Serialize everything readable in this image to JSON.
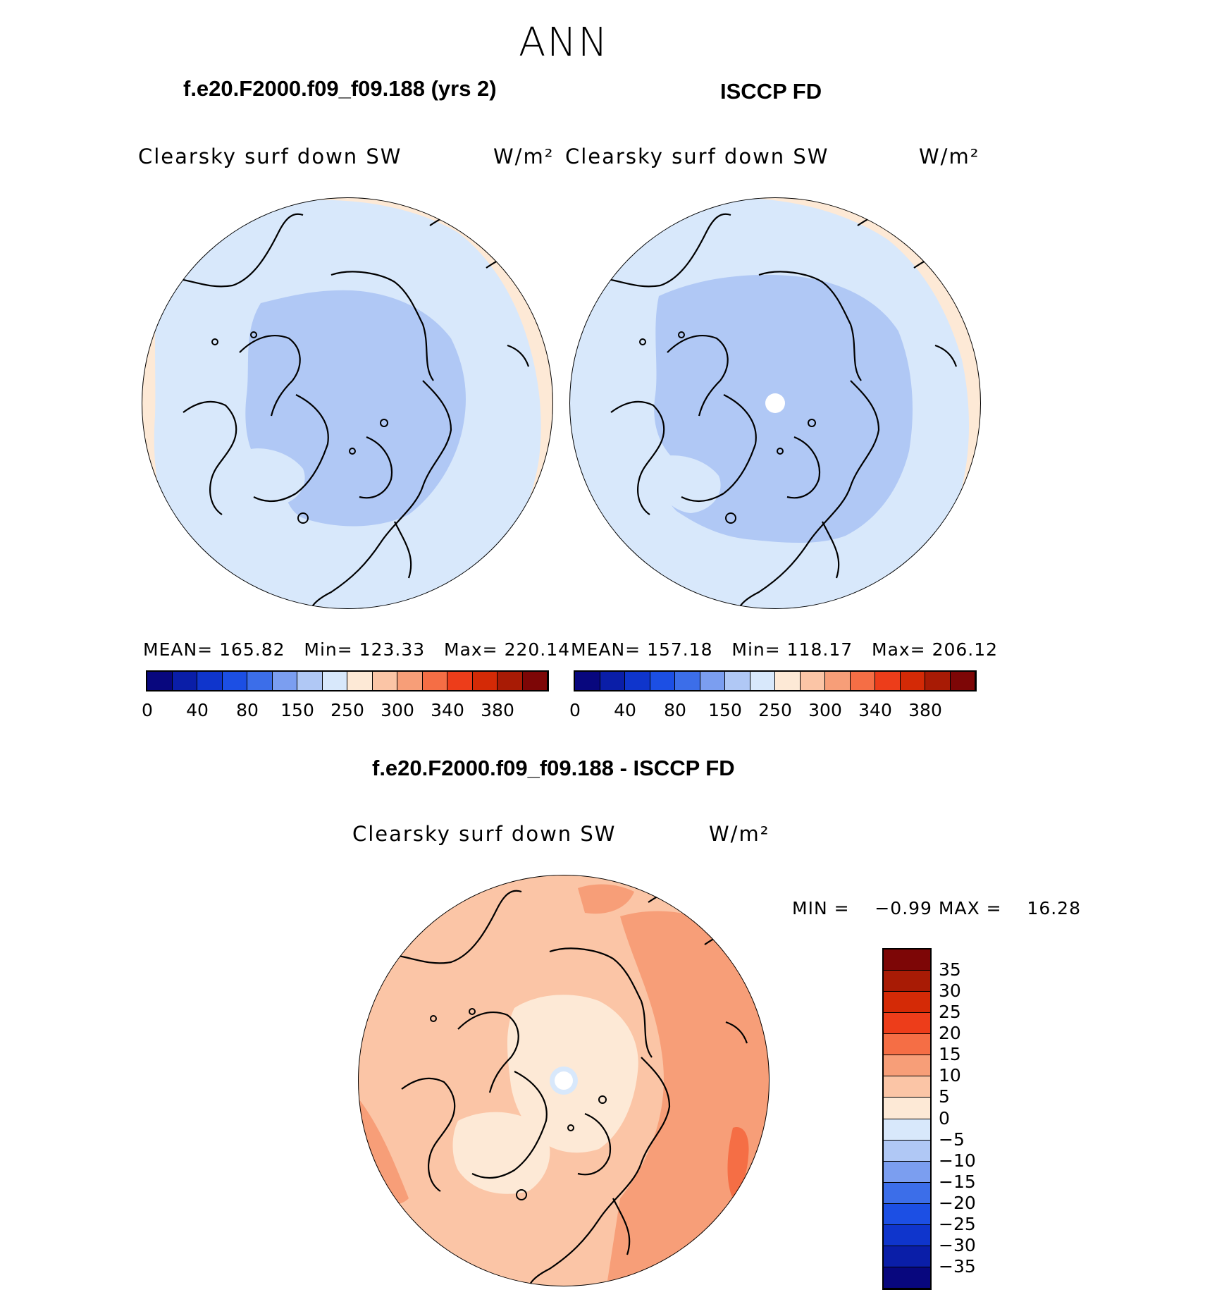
{
  "figure": {
    "title": "ANN",
    "panels": [
      {
        "id": "model",
        "title": "f.e20.F2000.f09_f09.188 (yrs 2)",
        "variable": "Clearsky surf down SW",
        "units": "W/m²",
        "stats": {
          "mean_label": "MEAN=",
          "mean": "165.82",
          "min_label": "Min=",
          "min": "123.33",
          "max_label": "Max=",
          "max": "220.14"
        }
      },
      {
        "id": "obs",
        "title": "ISCCP FD",
        "variable": "Clearsky surf down SW",
        "units": "W/m²",
        "stats": {
          "mean_label": "MEAN=",
          "mean": "157.18",
          "min_label": "Min=",
          "min": "118.17",
          "max_label": "Max=",
          "max": "206.12"
        }
      },
      {
        "id": "diff",
        "title": "f.e20.F2000.f09_f09.188 - ISCCP FD",
        "variable": "Clearsky surf down SW",
        "units": "W/m²",
        "stats": {
          "min_label": "MIN =",
          "min": "−0.99",
          "max_label": "MAX =",
          "max": "16.28"
        }
      }
    ],
    "colorbar_field": {
      "tick_labels": [
        "0",
        "40",
        "80",
        "150",
        "250",
        "300",
        "340",
        "380"
      ],
      "colors": [
        "#08077e",
        "#0a1ea8",
        "#0f35cc",
        "#1c4fe4",
        "#3c6ee9",
        "#7b9ef0",
        "#b0c8f5",
        "#d8e8fb",
        "#fde9d6",
        "#fbc5a6",
        "#f79e78",
        "#f56e45",
        "#ed3d1a",
        "#d42a06",
        "#a81b05",
        "#7d0606"
      ]
    },
    "colorbar_diff": {
      "tick_labels": [
        "35",
        "30",
        "25",
        "20",
        "15",
        "10",
        "5",
        "0",
        "−5",
        "−10",
        "−15",
        "−20",
        "−25",
        "−30",
        "−35"
      ],
      "colors": [
        "#7d0606",
        "#a81b05",
        "#d42a06",
        "#ed3d1a",
        "#f56e45",
        "#f79e78",
        "#fbc5a6",
        "#fde9d6",
        "#d8e8fb",
        "#b0c8f5",
        "#7b9ef0",
        "#3c6ee9",
        "#1c4fe4",
        "#0f35cc",
        "#0a1ea8",
        "#08077e"
      ]
    },
    "map_colors": {
      "ocean_outer": "#fde9d6",
      "mid": "#d8e8fb",
      "inner": "#b0c8f5",
      "missing": "#ffffff",
      "diff_base": "#fbc5a6",
      "diff_light": "#fde9d6",
      "diff_mid": "#f79e78"
    }
  }
}
